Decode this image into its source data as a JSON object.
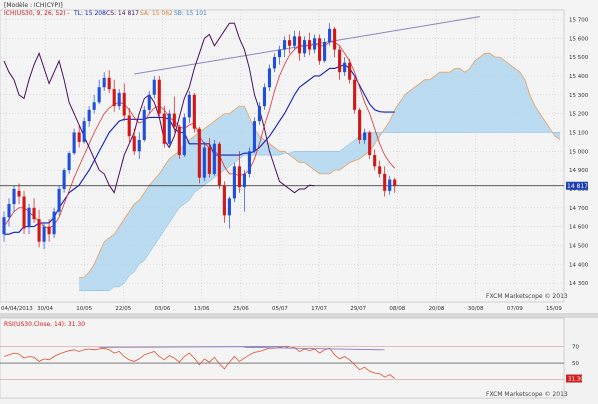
{
  "chart_data": [
    {
      "type": "candlestick",
      "panel": "price",
      "header": {
        "model": "[Modèle : ICH(CYP)]",
        "ichimoku_label": "ICH(US30, 9, 26, 52) -",
        "tl": "TL: 15 208",
        "cs": "CS: 14 817",
        "sa": "SA: 15 062",
        "sb": "SB: 15 101"
      },
      "watermark": "FXCM Marketscope © 2013",
      "last_price": "14 817",
      "colors": {
        "up": "#1f4fd8",
        "down": "#d01818",
        "tenkan": "#e03030",
        "kijun": "#1020c0",
        "chikou": "#4a1060",
        "span_a": "#e8a060",
        "cloud": "#a8d4ef",
        "trendline": "#8a86c0"
      },
      "y_range": [
        14200,
        15750
      ],
      "y_ticks": [
        "15 700",
        "15 600",
        "15 500",
        "15 400",
        "15 300",
        "15 200",
        "15 100",
        "15 000",
        "14 900",
        "14 800",
        "14 700",
        "14 600",
        "14 500",
        "14 400",
        "14 300"
      ],
      "x_ticks": [
        "04/04/2013",
        "30/04",
        "10/05",
        "22/05",
        "03/06",
        "13/06",
        "25/06",
        "05/07",
        "17/07",
        "29/07",
        "08/08",
        "20/08",
        "30/08",
        "07/09",
        "15/09"
      ],
      "ohlc": [
        [
          14560,
          14680,
          14520,
          14650
        ],
        [
          14650,
          14750,
          14600,
          14720
        ],
        [
          14720,
          14820,
          14680,
          14800
        ],
        [
          14790,
          14830,
          14720,
          14760
        ],
        [
          14760,
          14790,
          14560,
          14590
        ],
        [
          14600,
          14720,
          14560,
          14700
        ],
        [
          14700,
          14750,
          14620,
          14640
        ],
        [
          14640,
          14690,
          14490,
          14520
        ],
        [
          14520,
          14620,
          14480,
          14600
        ],
        [
          14600,
          14640,
          14520,
          14560
        ],
        [
          14560,
          14700,
          14540,
          14680
        ],
        [
          14680,
          14820,
          14660,
          14800
        ],
        [
          14800,
          14910,
          14780,
          14900
        ],
        [
          14900,
          15000,
          14880,
          14990
        ],
        [
          14990,
          15120,
          14980,
          15100
        ],
        [
          15100,
          15140,
          15020,
          15050
        ],
        [
          15050,
          15180,
          15040,
          15160
        ],
        [
          15160,
          15240,
          15130,
          15220
        ],
        [
          15220,
          15300,
          15200,
          15260
        ],
        [
          15260,
          15380,
          15250,
          15340
        ],
        [
          15340,
          15420,
          15320,
          15390
        ],
        [
          15390,
          15430,
          15310,
          15330
        ],
        [
          15330,
          15380,
          15210,
          15240
        ],
        [
          15240,
          15330,
          15220,
          15310
        ],
        [
          15310,
          15360,
          15160,
          15190
        ],
        [
          15190,
          15230,
          15050,
          15080
        ],
        [
          15080,
          15120,
          14980,
          15000
        ],
        [
          15000,
          15100,
          14960,
          15060
        ],
        [
          15060,
          15240,
          15050,
          15220
        ],
        [
          15220,
          15320,
          15200,
          15300
        ],
        [
          15300,
          15400,
          15280,
          15380
        ],
        [
          15380,
          15400,
          15180,
          15200
        ],
        [
          15200,
          15240,
          15020,
          15040
        ],
        [
          15040,
          15220,
          15030,
          15200
        ],
        [
          15200,
          15290,
          15100,
          15130
        ],
        [
          15130,
          15140,
          14960,
          14980
        ],
        [
          14980,
          15200,
          14970,
          15180
        ],
        [
          15180,
          15320,
          15150,
          15300
        ],
        [
          15300,
          15310,
          15100,
          15120
        ],
        [
          15120,
          15130,
          14830,
          14860
        ],
        [
          14860,
          15050,
          14840,
          15020
        ],
        [
          15020,
          15070,
          14860,
          14880
        ],
        [
          14880,
          15060,
          14870,
          15040
        ],
        [
          15040,
          15050,
          14800,
          14820
        ],
        [
          14820,
          14840,
          14620,
          14660
        ],
        [
          14660,
          14760,
          14590,
          14750
        ],
        [
          14750,
          14940,
          14730,
          14920
        ],
        [
          14920,
          15000,
          14780,
          14810
        ],
        [
          14810,
          14900,
          14680,
          14880
        ],
        [
          14880,
          15020,
          14860,
          15000
        ],
        [
          15000,
          15180,
          14990,
          15160
        ],
        [
          15160,
          15260,
          15140,
          15240
        ],
        [
          15240,
          15360,
          15220,
          15340
        ],
        [
          15340,
          15460,
          15320,
          15440
        ],
        [
          15440,
          15520,
          15420,
          15500
        ],
        [
          15500,
          15560,
          15460,
          15540
        ],
        [
          15540,
          15610,
          15500,
          15590
        ],
        [
          15590,
          15620,
          15520,
          15560
        ],
        [
          15560,
          15640,
          15540,
          15610
        ],
        [
          15610,
          15640,
          15480,
          15520
        ],
        [
          15520,
          15610,
          15500,
          15590
        ],
        [
          15590,
          15630,
          15510,
          15540
        ],
        [
          15540,
          15620,
          15520,
          15600
        ],
        [
          15600,
          15620,
          15460,
          15480
        ],
        [
          15480,
          15600,
          15470,
          15580
        ],
        [
          15580,
          15680,
          15560,
          15650
        ],
        [
          15650,
          15660,
          15500,
          15540
        ],
        [
          15540,
          15560,
          15380,
          15420
        ],
        [
          15420,
          15500,
          15400,
          15470
        ],
        [
          15470,
          15490,
          15360,
          15380
        ],
        [
          15380,
          15400,
          15200,
          15220
        ],
        [
          15220,
          15230,
          15040,
          15060
        ],
        [
          15060,
          15120,
          15040,
          15100
        ],
        [
          15100,
          15110,
          14960,
          14980
        ],
        [
          14980,
          15010,
          14900,
          14920
        ],
        [
          14920,
          14950,
          14860,
          14880
        ],
        [
          14880,
          14920,
          14760,
          14790
        ],
        [
          14790,
          14870,
          14770,
          14850
        ],
        [
          14850,
          14860,
          14780,
          14817
        ]
      ],
      "tenkan": [
        14600,
        14640,
        14680,
        14700,
        14700,
        14680,
        14650,
        14630,
        14600,
        14590,
        14610,
        14650,
        14720,
        14790,
        14860,
        14920,
        14980,
        15040,
        15100,
        15150,
        15200,
        15230,
        15250,
        15260,
        15250,
        15220,
        15180,
        15150,
        15160,
        15200,
        15230,
        15240,
        15220,
        15180,
        15160,
        15130,
        15120,
        15140,
        15150,
        15080,
        15040,
        15020,
        15000,
        14980,
        14920,
        14880,
        14880,
        14870,
        14880,
        14900,
        14960,
        15040,
        15140,
        15220,
        15320,
        15400,
        15460,
        15510,
        15540,
        15560,
        15560,
        15560,
        15570,
        15560,
        15560,
        15580,
        15580,
        15560,
        15520,
        15480,
        15420,
        15340,
        15260,
        15200,
        15120,
        15040,
        14980,
        14940,
        14910
      ],
      "kijun": [
        14560,
        14560,
        14570,
        14570,
        14600,
        14600,
        14600,
        14620,
        14620,
        14620,
        14650,
        14700,
        14740,
        14780,
        14800,
        14820,
        14860,
        14900,
        14950,
        15000,
        15050,
        15100,
        15130,
        15160,
        15170,
        15170,
        15170,
        15170,
        15170,
        15180,
        15180,
        15180,
        15180,
        15170,
        15120,
        15100,
        15100,
        15040,
        15040,
        15040,
        15040,
        15040,
        14980,
        14980,
        14980,
        14980,
        14980,
        14980,
        14990,
        14990,
        15000,
        15020,
        15050,
        15080,
        15120,
        15160,
        15200,
        15250,
        15300,
        15340,
        15360,
        15380,
        15400,
        15400,
        15420,
        15440,
        15440,
        15450,
        15460,
        15440,
        15400,
        15350,
        15300,
        15250,
        15220,
        15210,
        15208,
        15208,
        15208
      ],
      "chikou": [
        15480,
        15420,
        15380,
        15300,
        15280,
        15380,
        15460,
        15520,
        15440,
        15360,
        15420,
        15480,
        15380,
        15260,
        15200,
        15140,
        15080,
        15020,
        14960,
        14900,
        14880,
        14820,
        14780,
        14880,
        14980,
        15040,
        15100,
        15200,
        15280,
        15300,
        15260,
        15180,
        15060,
        15020,
        15080,
        15180,
        15280,
        15340,
        15440,
        15520,
        15600,
        15620,
        15560,
        15600,
        15640,
        15680,
        15680,
        15600,
        15540,
        15440,
        15300,
        15220,
        15120,
        15000,
        14920,
        14840,
        14820,
        14800,
        14780,
        14800,
        14800,
        14820,
        14817
      ],
      "span_a": [
        14330,
        14330,
        14360,
        14400,
        14460,
        14520,
        14540,
        14560,
        14600,
        14640,
        14680,
        14720,
        14740,
        14780,
        14820,
        14850,
        14880,
        14920,
        14960,
        14980,
        15000,
        15040,
        15060,
        15080,
        15100,
        15120,
        15140,
        15160,
        15180,
        15200,
        15200,
        15220,
        15240,
        15240,
        15180,
        15120,
        15080,
        15060,
        15040,
        15020,
        15000,
        15000,
        14980,
        14960,
        14940,
        14940,
        14920,
        14900,
        14880,
        14880,
        14880,
        14900,
        14900,
        14920,
        14940,
        14950,
        14960,
        14980,
        15000,
        15040,
        15080,
        15120,
        15160,
        15220,
        15260,
        15300,
        15320,
        15340,
        15360,
        15380,
        15380,
        15400,
        15420,
        15420,
        15420,
        15440,
        15440,
        15420,
        15440,
        15480,
        15500,
        15520,
        15520,
        15500,
        15500,
        15480,
        15460,
        15440,
        15420,
        15380,
        15300,
        15240,
        15200,
        15160,
        15120,
        15080,
        15062
      ],
      "span_b": [
        14260,
        14260,
        14260,
        14260,
        14260,
        14260,
        14260,
        14280,
        14280,
        14300,
        14340,
        14360,
        14400,
        14420,
        14460,
        14500,
        14540,
        14580,
        14620,
        14660,
        14700,
        14720,
        14740,
        14780,
        14800,
        14820,
        14840,
        14860,
        14880,
        14900,
        14920,
        14940,
        14960,
        14980,
        14980,
        14980,
        14980,
        14980,
        14980,
        14980,
        14980,
        14990,
        14990,
        15000,
        15000,
        15000,
        15000,
        15000,
        15000,
        15000,
        15000,
        15000,
        15000,
        15020,
        15040,
        15060,
        15080,
        15100,
        15100,
        15100,
        15100,
        15100,
        15100,
        15100,
        15100,
        15100,
        15100,
        15100,
        15100,
        15100,
        15100,
        15100,
        15100,
        15100,
        15100,
        15100,
        15100,
        15100,
        15101,
        15101,
        15101,
        15101,
        15101,
        15101,
        15101,
        15101,
        15101,
        15101,
        15101,
        15101,
        15101,
        15101,
        15101,
        15101,
        15101,
        15101,
        15101
      ]
    },
    {
      "type": "line",
      "panel": "rsi",
      "label": "RSI(US30.Close, 14): 31.30",
      "last_value": "31.30",
      "y_range": [
        15,
        90
      ],
      "levels": [
        70,
        50,
        30
      ],
      "level_labels": [
        "70",
        "50",
        "30"
      ],
      "watermark": "FXCM Marketscope © 2013",
      "values": [
        58,
        60,
        62,
        61,
        56,
        58,
        57,
        52,
        55,
        54,
        58,
        61,
        63,
        65,
        66,
        64,
        66,
        67,
        66,
        67,
        68,
        66,
        62,
        64,
        58,
        54,
        52,
        55,
        60,
        62,
        64,
        58,
        54,
        59,
        56,
        51,
        58,
        62,
        56,
        48,
        55,
        51,
        57,
        49,
        43,
        51,
        58,
        52,
        56,
        60,
        63,
        64,
        66,
        68,
        68,
        69,
        70,
        68,
        69,
        64,
        67,
        65,
        67,
        62,
        66,
        68,
        60,
        55,
        58,
        54,
        48,
        42,
        45,
        40,
        38,
        37,
        33,
        36,
        31.3
      ],
      "divergence_lines": [
        [
          [
            19,
            69
          ],
          [
            57,
            70
          ]
        ],
        [
          [
            48,
            69
          ],
          [
            76,
            66
          ]
        ]
      ]
    }
  ]
}
